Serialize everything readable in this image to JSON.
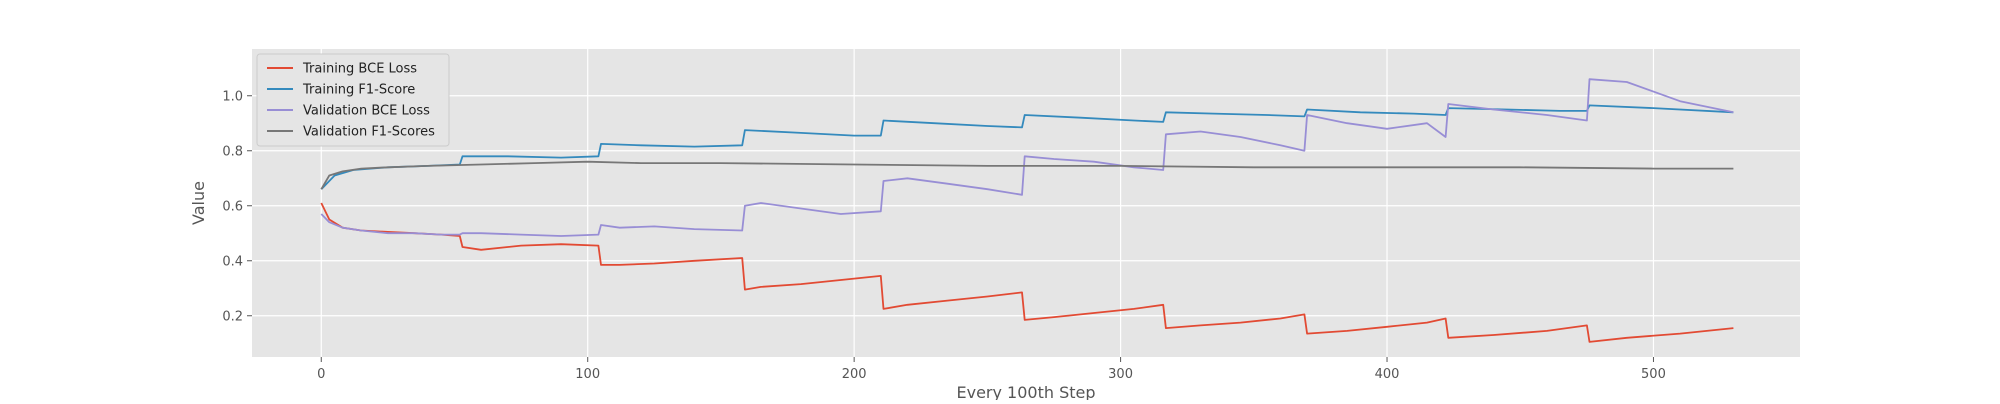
{
  "chart_data": {
    "type": "line",
    "title": "",
    "xlabel": "Every 100th Step",
    "ylabel": "Value",
    "xlim": [
      -26,
      555
    ],
    "ylim": [
      0.05,
      1.17
    ],
    "x_ticks": [
      0,
      100,
      200,
      300,
      400,
      500
    ],
    "y_ticks": [
      0.2,
      0.4,
      0.6,
      0.8,
      1.0
    ],
    "x_tick_labels": [
      "0",
      "100",
      "200",
      "300",
      "400",
      "500"
    ],
    "y_tick_labels": [
      "0.2",
      "0.4",
      "0.6",
      "0.8",
      "1.0"
    ],
    "grid": true,
    "legend_position": "top-left",
    "series": [
      {
        "name": "Training BCE Loss",
        "color": "#e24a33",
        "x": [
          0,
          3,
          8,
          15,
          25,
          35,
          45,
          52,
          53,
          60,
          75,
          90,
          104,
          105,
          112,
          125,
          140,
          158,
          159,
          165,
          180,
          195,
          210,
          211,
          220,
          235,
          250,
          263,
          264,
          275,
          290,
          305,
          316,
          317,
          330,
          345,
          360,
          369,
          370,
          385,
          400,
          415,
          422,
          423,
          440,
          460,
          475,
          476,
          490,
          510,
          530
        ],
        "y": [
          0.61,
          0.55,
          0.52,
          0.51,
          0.505,
          0.5,
          0.495,
          0.49,
          0.45,
          0.44,
          0.455,
          0.46,
          0.455,
          0.385,
          0.385,
          0.39,
          0.4,
          0.41,
          0.295,
          0.305,
          0.315,
          0.33,
          0.345,
          0.225,
          0.24,
          0.255,
          0.27,
          0.285,
          0.185,
          0.195,
          0.21,
          0.225,
          0.24,
          0.155,
          0.165,
          0.175,
          0.19,
          0.205,
          0.135,
          0.145,
          0.16,
          0.175,
          0.19,
          0.12,
          0.13,
          0.145,
          0.165,
          0.105,
          0.12,
          0.135,
          0.155
        ]
      },
      {
        "name": "Training F1-Score",
        "color": "#348abd",
        "x": [
          0,
          5,
          12,
          25,
          40,
          52,
          53,
          70,
          90,
          104,
          105,
          120,
          140,
          158,
          159,
          180,
          200,
          210,
          211,
          230,
          250,
          263,
          264,
          285,
          305,
          316,
          317,
          335,
          355,
          369,
          370,
          390,
          410,
          422,
          423,
          445,
          465,
          475,
          476,
          500,
          530
        ],
        "y": [
          0.66,
          0.71,
          0.73,
          0.74,
          0.745,
          0.75,
          0.78,
          0.78,
          0.775,
          0.78,
          0.825,
          0.82,
          0.815,
          0.82,
          0.875,
          0.865,
          0.855,
          0.855,
          0.91,
          0.9,
          0.89,
          0.885,
          0.93,
          0.92,
          0.91,
          0.905,
          0.94,
          0.935,
          0.93,
          0.925,
          0.95,
          0.94,
          0.935,
          0.93,
          0.955,
          0.95,
          0.945,
          0.945,
          0.965,
          0.955,
          0.94
        ]
      },
      {
        "name": "Validation BCE Loss",
        "color": "#988ed5",
        "x": [
          0,
          3,
          8,
          15,
          25,
          35,
          45,
          52,
          53,
          60,
          75,
          90,
          104,
          105,
          112,
          125,
          140,
          158,
          159,
          165,
          180,
          195,
          210,
          211,
          220,
          235,
          250,
          263,
          264,
          275,
          290,
          305,
          316,
          317,
          330,
          345,
          360,
          369,
          370,
          385,
          400,
          415,
          422,
          423,
          440,
          460,
          475,
          476,
          490,
          510,
          530
        ],
        "y": [
          0.57,
          0.54,
          0.52,
          0.51,
          0.5,
          0.5,
          0.495,
          0.495,
          0.5,
          0.5,
          0.495,
          0.49,
          0.495,
          0.53,
          0.52,
          0.525,
          0.515,
          0.51,
          0.6,
          0.61,
          0.59,
          0.57,
          0.58,
          0.69,
          0.7,
          0.68,
          0.66,
          0.64,
          0.78,
          0.77,
          0.76,
          0.74,
          0.73,
          0.86,
          0.87,
          0.85,
          0.82,
          0.8,
          0.93,
          0.9,
          0.88,
          0.9,
          0.85,
          0.97,
          0.95,
          0.93,
          0.91,
          1.06,
          1.05,
          0.98,
          0.94
        ]
      },
      {
        "name": "Validation F1-Scores",
        "color": "#777777",
        "x": [
          0,
          3,
          8,
          15,
          25,
          40,
          60,
          80,
          100,
          120,
          150,
          200,
          250,
          300,
          350,
          400,
          450,
          500,
          530
        ],
        "y": [
          0.66,
          0.71,
          0.725,
          0.735,
          0.74,
          0.745,
          0.75,
          0.755,
          0.76,
          0.755,
          0.755,
          0.75,
          0.745,
          0.745,
          0.74,
          0.74,
          0.74,
          0.735,
          0.735
        ]
      }
    ]
  }
}
